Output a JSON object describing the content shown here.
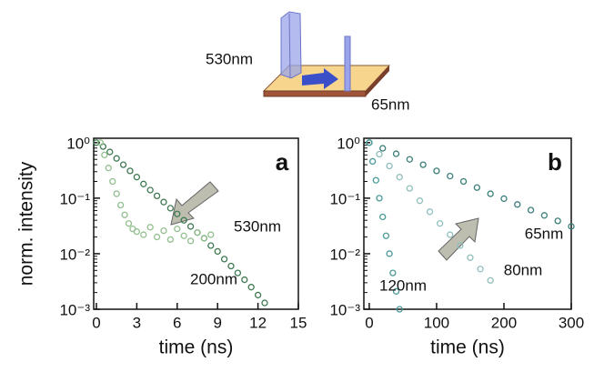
{
  "schematic": {
    "labels": [
      "530nm",
      "65nm"
    ]
  },
  "chart_data": [
    {
      "type": "scatter",
      "panel": "a",
      "y_label": "norm. intensity",
      "x_label": "time (ns)",
      "log_y": true,
      "xlim": [
        -0.2,
        15
      ],
      "xticks": [
        0,
        3,
        6,
        9,
        12,
        15
      ],
      "ylim": [
        0.001,
        1.2
      ],
      "yticks": [
        {
          "value": 1,
          "label": "10⁰"
        },
        {
          "value": 0.1,
          "label": "10⁻¹"
        },
        {
          "value": 0.01,
          "label": "10⁻²"
        },
        {
          "value": 0.001,
          "label": "10⁻³"
        }
      ],
      "series": [
        {
          "name": "530nm",
          "color": "#3f7a52",
          "x": [
            0,
            0.5,
            1,
            1.5,
            2,
            2.5,
            3,
            3.5,
            4,
            4.5,
            5,
            5.5,
            6,
            6.5,
            7,
            7.5,
            8,
            8.5,
            9,
            9.5,
            10,
            10.5,
            11,
            11.5,
            12,
            12.5
          ],
          "values": [
            1,
            0.85,
            0.68,
            0.52,
            0.4,
            0.31,
            0.24,
            0.18,
            0.14,
            0.11,
            0.085,
            0.066,
            0.052,
            0.04,
            0.031,
            0.024,
            0.019,
            0.014,
            0.011,
            0.008,
            0.006,
            0.0045,
            0.0034,
            0.0025,
            0.0018,
            0.0013
          ]
        },
        {
          "name": "200nm",
          "color": "#93bf90",
          "x": [
            0.3,
            0.6,
            0.9,
            1.2,
            1.5,
            1.8,
            2.1,
            2.4,
            2.7,
            3,
            3.5,
            4,
            4.5,
            5,
            5.5,
            6,
            6.5,
            7,
            7.5,
            8,
            8.5
          ],
          "values": [
            1,
            0.6,
            0.35,
            0.2,
            0.12,
            0.075,
            0.05,
            0.035,
            0.028,
            0.025,
            0.022,
            0.03,
            0.02,
            0.026,
            0.018,
            0.028,
            0.021,
            0.017,
            0.024,
            0.019,
            0.022
          ]
        }
      ]
    },
    {
      "type": "scatter",
      "panel": "b",
      "x_label": "time (ns)",
      "log_y": true,
      "xlim": [
        -8,
        300
      ],
      "xticks": [
        0,
        100,
        200,
        300
      ],
      "ylim": [
        0.001,
        1.2
      ],
      "yticks": [
        {
          "value": 1,
          "label": "10⁰"
        },
        {
          "value": 0.1,
          "label": "10⁻¹"
        },
        {
          "value": 0.01,
          "label": "10⁻²"
        },
        {
          "value": 0.001,
          "label": "10⁻³"
        }
      ],
      "series": [
        {
          "name": "65nm",
          "color": "#3a7f7a",
          "x": [
            0,
            20,
            40,
            60,
            80,
            100,
            120,
            140,
            160,
            180,
            200,
            220,
            240,
            260,
            280,
            300
          ],
          "values": [
            1,
            0.79,
            0.63,
            0.5,
            0.4,
            0.31,
            0.25,
            0.2,
            0.155,
            0.12,
            0.098,
            0.077,
            0.061,
            0.049,
            0.039,
            0.031
          ]
        },
        {
          "name": "80nm",
          "color": "#8fbfbd",
          "x": [
            0,
            15,
            30,
            45,
            60,
            75,
            90,
            105,
            120,
            135,
            150,
            165,
            180
          ],
          "values": [
            1,
            0.62,
            0.38,
            0.24,
            0.15,
            0.09,
            0.057,
            0.035,
            0.022,
            0.014,
            0.0085,
            0.0053,
            0.0033
          ]
        },
        {
          "name": "120nm",
          "color": "#4a9a98",
          "x": [
            0,
            5,
            10,
            15,
            20,
            25,
            30,
            35,
            40,
            45
          ],
          "values": [
            1,
            0.46,
            0.21,
            0.1,
            0.046,
            0.021,
            0.01,
            0.0045,
            0.0021,
            0.001
          ]
        }
      ]
    }
  ]
}
